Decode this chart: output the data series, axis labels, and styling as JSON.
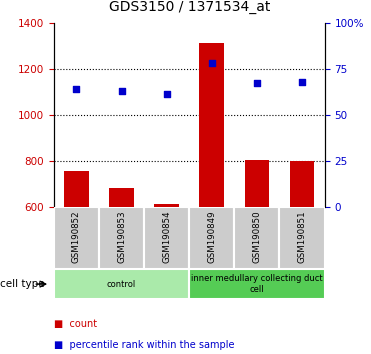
{
  "title": "GDS3150 / 1371534_at",
  "samples": [
    "GSM190852",
    "GSM190853",
    "GSM190854",
    "GSM190849",
    "GSM190850",
    "GSM190851"
  ],
  "bar_values": [
    755,
    685,
    615,
    1315,
    805,
    800
  ],
  "bar_bottom": 600,
  "scatter_values": [
    1115,
    1105,
    1090,
    1225,
    1140,
    1145
  ],
  "bar_color": "#cc0000",
  "scatter_color": "#0000cc",
  "ylim_left": [
    600,
    1400
  ],
  "yticks_left": [
    600,
    800,
    1000,
    1200,
    1400
  ],
  "ytick_labels_right": [
    "0",
    "25",
    "50",
    "75",
    "100%"
  ],
  "groups": [
    {
      "label": "control",
      "start": 0,
      "end": 3,
      "color": "#aaeaaa"
    },
    {
      "label": "inner medullary collecting duct\ncell",
      "start": 3,
      "end": 6,
      "color": "#55cc55"
    }
  ],
  "cell_type_label": "cell type",
  "legend_count_label": "count",
  "legend_pct_label": "percentile rank within the sample",
  "tick_color_left": "#cc0000",
  "tick_color_right": "#0000cc",
  "bar_width": 0.55,
  "sample_box_color": "#cccccc",
  "title_fontsize": 10
}
